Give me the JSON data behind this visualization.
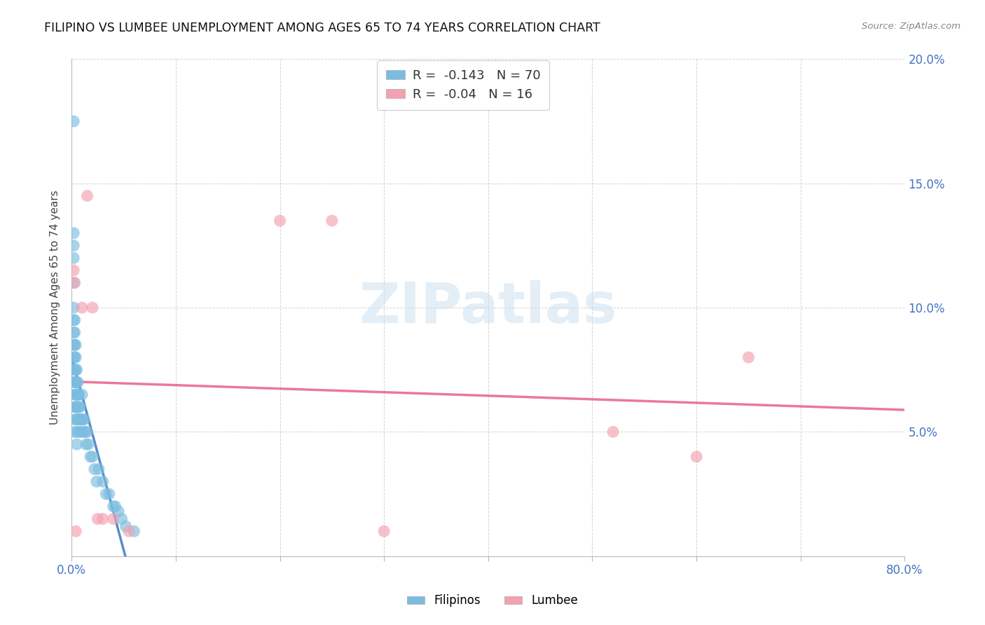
{
  "title": "FILIPINO VS LUMBEE UNEMPLOYMENT AMONG AGES 65 TO 74 YEARS CORRELATION CHART",
  "source": "Source: ZipAtlas.com",
  "ylabel": "Unemployment Among Ages 65 to 74 years",
  "xlim": [
    0,
    0.8
  ],
  "ylim": [
    0,
    0.2
  ],
  "r_filipino": -0.143,
  "n_filipino": 70,
  "r_lumbee": -0.04,
  "n_lumbee": 16,
  "filipino_color": "#7bbde0",
  "lumbee_color": "#f4a0b0",
  "filipino_line_color": "#3a7abf",
  "lumbee_line_color": "#e8608a",
  "watermark_color": "#cce0f0",
  "filipino_x": [
    0.002,
    0.002,
    0.002,
    0.002,
    0.002,
    0.002,
    0.002,
    0.002,
    0.002,
    0.002,
    0.002,
    0.002,
    0.003,
    0.003,
    0.003,
    0.003,
    0.003,
    0.003,
    0.003,
    0.003,
    0.003,
    0.003,
    0.004,
    0.004,
    0.004,
    0.004,
    0.004,
    0.004,
    0.005,
    0.005,
    0.005,
    0.005,
    0.005,
    0.005,
    0.005,
    0.006,
    0.006,
    0.006,
    0.006,
    0.007,
    0.007,
    0.007,
    0.008,
    0.008,
    0.008,
    0.009,
    0.009,
    0.01,
    0.01,
    0.011,
    0.012,
    0.012,
    0.013,
    0.014,
    0.015,
    0.016,
    0.018,
    0.02,
    0.022,
    0.024,
    0.026,
    0.03,
    0.033,
    0.036,
    0.04,
    0.042,
    0.045,
    0.048,
    0.052,
    0.06
  ],
  "filipino_y": [
    0.175,
    0.13,
    0.125,
    0.12,
    0.11,
    0.1,
    0.095,
    0.09,
    0.085,
    0.08,
    0.075,
    0.07,
    0.095,
    0.09,
    0.085,
    0.08,
    0.075,
    0.07,
    0.065,
    0.06,
    0.055,
    0.05,
    0.085,
    0.08,
    0.075,
    0.07,
    0.065,
    0.06,
    0.075,
    0.07,
    0.065,
    0.06,
    0.055,
    0.05,
    0.045,
    0.07,
    0.065,
    0.06,
    0.055,
    0.065,
    0.06,
    0.055,
    0.06,
    0.055,
    0.05,
    0.055,
    0.05,
    0.065,
    0.055,
    0.055,
    0.055,
    0.05,
    0.05,
    0.045,
    0.05,
    0.045,
    0.04,
    0.04,
    0.035,
    0.03,
    0.035,
    0.03,
    0.025,
    0.025,
    0.02,
    0.02,
    0.018,
    0.015,
    0.012,
    0.01
  ],
  "lumbee_x": [
    0.002,
    0.003,
    0.004,
    0.01,
    0.015,
    0.02,
    0.025,
    0.03,
    0.04,
    0.055,
    0.2,
    0.3,
    0.52,
    0.6,
    0.65,
    0.25
  ],
  "lumbee_y": [
    0.115,
    0.11,
    0.01,
    0.1,
    0.145,
    0.1,
    0.015,
    0.015,
    0.015,
    0.01,
    0.135,
    0.01,
    0.05,
    0.04,
    0.08,
    0.135
  ]
}
